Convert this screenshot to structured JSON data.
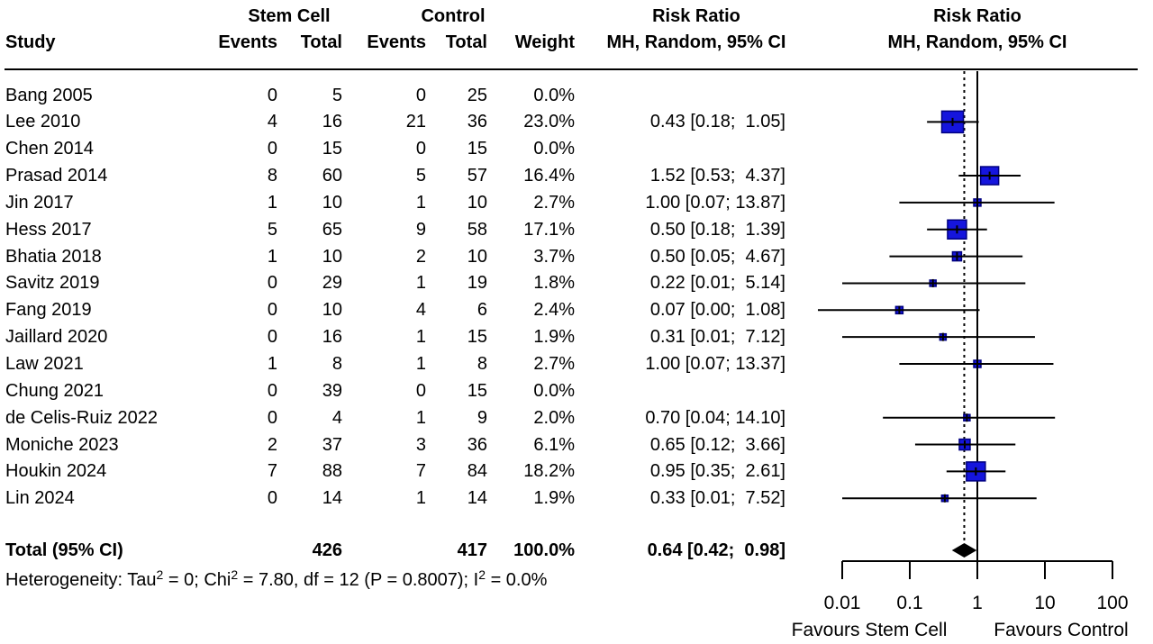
{
  "chart_data": {
    "type": "forest",
    "group_headers": {
      "stem_cell": "Stem Cell",
      "control": "Control",
      "risk_ratio_text": "Risk Ratio",
      "risk_ratio_plot": "Risk Ratio"
    },
    "columns": {
      "study": "Study",
      "events": "Events",
      "total": "Total",
      "weight": "Weight",
      "mh_ci": "MH, Random, 95% CI"
    },
    "studies": [
      {
        "study": "Bang 2005",
        "sc_events": 0,
        "sc_total": 5,
        "c_events": 0,
        "c_total": 25,
        "weight": "0.0%",
        "weight_value": 0.0,
        "rr_text": "",
        "rr": null,
        "ci_low": null,
        "ci_high": null
      },
      {
        "study": "Lee 2010",
        "sc_events": 4,
        "sc_total": 16,
        "c_events": 21,
        "c_total": 36,
        "weight": "23.0%",
        "weight_value": 23.0,
        "rr_text": "0.43 [0.18;  1.05]",
        "rr": 0.43,
        "ci_low": 0.18,
        "ci_high": 1.05
      },
      {
        "study": "Chen 2014",
        "sc_events": 0,
        "sc_total": 15,
        "c_events": 0,
        "c_total": 15,
        "weight": "0.0%",
        "weight_value": 0.0,
        "rr_text": "",
        "rr": null,
        "ci_low": null,
        "ci_high": null
      },
      {
        "study": "Prasad 2014",
        "sc_events": 8,
        "sc_total": 60,
        "c_events": 5,
        "c_total": 57,
        "weight": "16.4%",
        "weight_value": 16.4,
        "rr_text": "1.52 [0.53;  4.37]",
        "rr": 1.52,
        "ci_low": 0.53,
        "ci_high": 4.37
      },
      {
        "study": "Jin 2017",
        "sc_events": 1,
        "sc_total": 10,
        "c_events": 1,
        "c_total": 10,
        "weight": "2.7%",
        "weight_value": 2.7,
        "rr_text": "1.00 [0.07; 13.87]",
        "rr": 1.0,
        "ci_low": 0.07,
        "ci_high": 13.87
      },
      {
        "study": "Hess 2017",
        "sc_events": 5,
        "sc_total": 65,
        "c_events": 9,
        "c_total": 58,
        "weight": "17.1%",
        "weight_value": 17.1,
        "rr_text": "0.50 [0.18;  1.39]",
        "rr": 0.5,
        "ci_low": 0.18,
        "ci_high": 1.39
      },
      {
        "study": "Bhatia 2018",
        "sc_events": 1,
        "sc_total": 10,
        "c_events": 2,
        "c_total": 10,
        "weight": "3.7%",
        "weight_value": 3.7,
        "rr_text": "0.50 [0.05;  4.67]",
        "rr": 0.5,
        "ci_low": 0.05,
        "ci_high": 4.67
      },
      {
        "study": "Savitz 2019",
        "sc_events": 0,
        "sc_total": 29,
        "c_events": 1,
        "c_total": 19,
        "weight": "1.8%",
        "weight_value": 1.8,
        "rr_text": "0.22 [0.01;  5.14]",
        "rr": 0.22,
        "ci_low": 0.01,
        "ci_high": 5.14
      },
      {
        "study": "Fang 2019",
        "sc_events": 0,
        "sc_total": 10,
        "c_events": 4,
        "c_total": 6,
        "weight": "2.4%",
        "weight_value": 2.4,
        "rr_text": "0.07 [0.00;  1.08]",
        "rr": 0.07,
        "ci_low": 0.0,
        "ci_high": 1.08
      },
      {
        "study": "Jaillard 2020",
        "sc_events": 0,
        "sc_total": 16,
        "c_events": 1,
        "c_total": 15,
        "weight": "1.9%",
        "weight_value": 1.9,
        "rr_text": "0.31 [0.01;  7.12]",
        "rr": 0.31,
        "ci_low": 0.01,
        "ci_high": 7.12
      },
      {
        "study": "Law 2021",
        "sc_events": 1,
        "sc_total": 8,
        "c_events": 1,
        "c_total": 8,
        "weight": "2.7%",
        "weight_value": 2.7,
        "rr_text": "1.00 [0.07; 13.37]",
        "rr": 1.0,
        "ci_low": 0.07,
        "ci_high": 13.37
      },
      {
        "study": "Chung 2021",
        "sc_events": 0,
        "sc_total": 39,
        "c_events": 0,
        "c_total": 15,
        "weight": "0.0%",
        "weight_value": 0.0,
        "rr_text": "",
        "rr": null,
        "ci_low": null,
        "ci_high": null
      },
      {
        "study": "de Celis-Ruiz 2022",
        "sc_events": 0,
        "sc_total": 4,
        "c_events": 1,
        "c_total": 9,
        "weight": "2.0%",
        "weight_value": 2.0,
        "rr_text": "0.70 [0.04; 14.10]",
        "rr": 0.7,
        "ci_low": 0.04,
        "ci_high": 14.1
      },
      {
        "study": "Moniche 2023",
        "sc_events": 2,
        "sc_total": 37,
        "c_events": 3,
        "c_total": 36,
        "weight": "6.1%",
        "weight_value": 6.1,
        "rr_text": "0.65 [0.12;  3.66]",
        "rr": 0.65,
        "ci_low": 0.12,
        "ci_high": 3.66
      },
      {
        "study": "Houkin 2024",
        "sc_events": 7,
        "sc_total": 88,
        "c_events": 7,
        "c_total": 84,
        "weight": "18.2%",
        "weight_value": 18.2,
        "rr_text": "0.95 [0.35;  2.61]",
        "rr": 0.95,
        "ci_low": 0.35,
        "ci_high": 2.61
      },
      {
        "study": "Lin 2024",
        "sc_events": 0,
        "sc_total": 14,
        "c_events": 1,
        "c_total": 14,
        "weight": "1.9%",
        "weight_value": 1.9,
        "rr_text": "0.33 [0.01;  7.52]",
        "rr": 0.33,
        "ci_low": 0.01,
        "ci_high": 7.52
      }
    ],
    "total_row": {
      "label": "Total (95% CI)",
      "sc_total": 426,
      "c_total": 417,
      "weight": "100.0%",
      "rr_text": "0.64 [0.42;  0.98]",
      "rr": 0.64,
      "ci_low": 0.42,
      "ci_high": 0.98
    },
    "heterogeneity_parts": [
      "Heterogeneity: Tau",
      {
        "sup": "2"
      },
      " = 0; Chi",
      {
        "sup": "2"
      },
      " = 7.80, df = 12 (P = 0.8007); I",
      {
        "sup": "2"
      },
      " = 0.0%"
    ],
    "axis": {
      "ticks": [
        "0.01",
        "0.1",
        "1",
        "10",
        "100"
      ],
      "tick_values": [
        0.01,
        0.1,
        1,
        10,
        100
      ],
      "favours_left": "Favours Stem Cell",
      "favours_right": "Favours Control",
      "scale": "log10",
      "null_line_at": 1
    },
    "colors": {
      "square_fill": "#1515DD",
      "square_stroke": "#000080",
      "line": "#000000",
      "diamond": "#000000",
      "background": "#FFFFFF",
      "text": "#000000"
    }
  }
}
